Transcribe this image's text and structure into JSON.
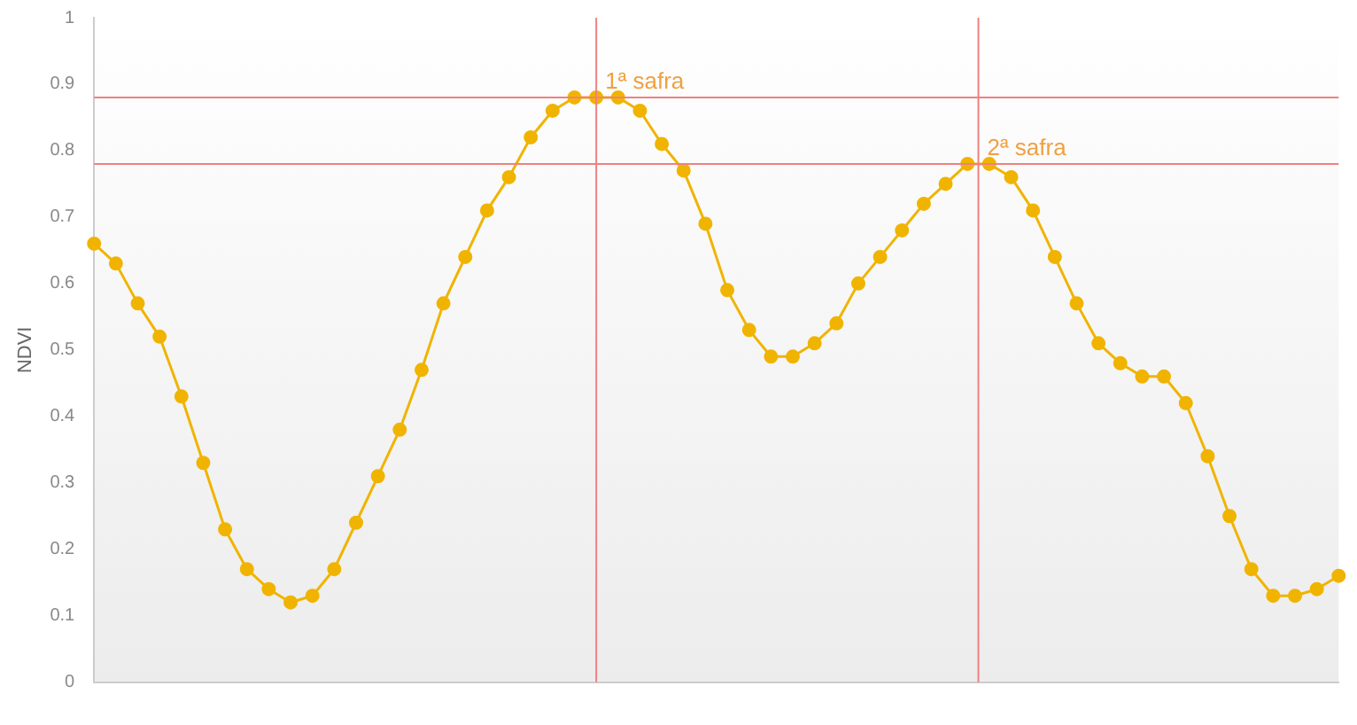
{
  "chart_data": {
    "type": "line",
    "ylabel": "NDVI",
    "categories": [
      null,
      null,
      null,
      null,
      null,
      null,
      null,
      null,
      null,
      null,
      null,
      null,
      null,
      null,
      null,
      null,
      null,
      null,
      null,
      null,
      null,
      null,
      null,
      null,
      null,
      null,
      null,
      null,
      null,
      null,
      null,
      null,
      null,
      null,
      null,
      null,
      null,
      null,
      null,
      null,
      null,
      null,
      null,
      null,
      null,
      null,
      null,
      null,
      null,
      null,
      null,
      null,
      null,
      null,
      null,
      null,
      null,
      null
    ],
    "series": [
      {
        "color": "#f0b400",
        "values": [
          0.66,
          0.63,
          0.57,
          0.52,
          0.43,
          0.33,
          0.23,
          0.17,
          0.14,
          0.12,
          0.13,
          0.17,
          0.24,
          0.31,
          0.38,
          0.47,
          0.57,
          0.64,
          0.71,
          0.76,
          0.82,
          0.86,
          0.88,
          0.88,
          0.88,
          0.86,
          0.81,
          0.77,
          0.69,
          0.59,
          0.53,
          0.49,
          0.49,
          0.51,
          0.54,
          0.6,
          0.64,
          0.68,
          0.72,
          0.75,
          0.78,
          0.78,
          0.76,
          0.71,
          0.64,
          0.57,
          0.51,
          0.48,
          0.46,
          0.46,
          0.42,
          0.34,
          0.25,
          0.17,
          0.13,
          0.13,
          0.14,
          0.16
        ]
      }
    ],
    "ylim": [
      0,
      1
    ],
    "yticks": [
      0,
      0.1,
      0.2,
      0.3,
      0.4,
      0.5,
      0.6,
      0.7,
      0.8,
      0.9,
      1
    ],
    "ref_lines": [
      {
        "axis": "y",
        "value": 0.88,
        "label": "1ª safra",
        "color": "#f08080"
      },
      {
        "axis": "y",
        "value": 0.78,
        "label": "2ª safra",
        "color": "#f08080"
      }
    ],
    "marker": "circle",
    "grid": false,
    "legend": false
  }
}
